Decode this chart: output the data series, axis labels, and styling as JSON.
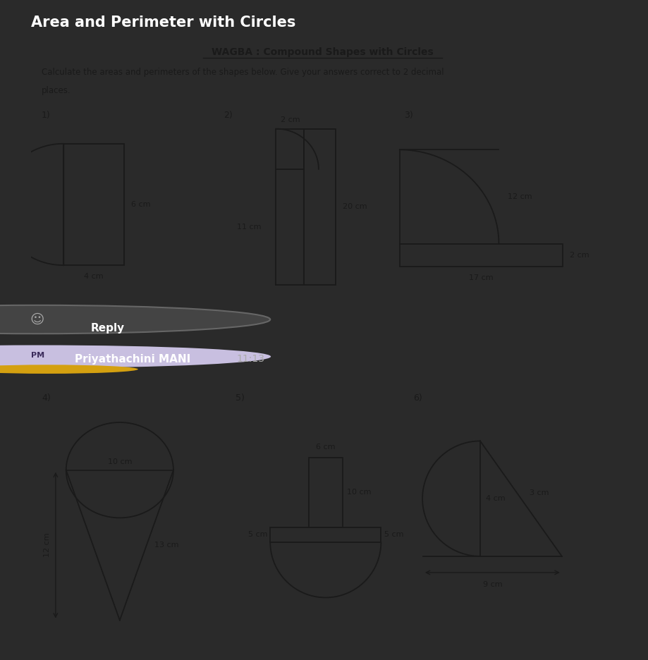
{
  "title": "Area and Perimeter with Circles",
  "bg_color": "#2a2a2a",
  "card_color": "#e8e8e8",
  "sc": "#1a1a1a",
  "wagba_title": "WAGBA : Compound Shapes with Circles",
  "instruction_line1": "Calculate the areas and perimeters of the shapes below. Give your answers correct to 2 decimal",
  "instruction_line2": "places.",
  "reply_text": "Reply",
  "pm_name": "Priyathachini MANI",
  "pm_time": "11:13",
  "labels_top": [
    "1)",
    "2)",
    "3)"
  ],
  "labels_bot": [
    "4)",
    "5)",
    "6)"
  ],
  "dims1": {
    "height": "6 cm",
    "base": "4 cm"
  },
  "dims2": {
    "top": "2 cm",
    "left": "11 cm",
    "right": "20 cm"
  },
  "dims3": {
    "side": "12 cm",
    "base": "17 cm",
    "height": "2 cm"
  },
  "dims4": {
    "diam": "10 cm",
    "left": "12 cm",
    "right": "13 cm"
  },
  "dims5": {
    "top": "6 cm",
    "right": "10 cm",
    "left_b": "5 cm",
    "right_b": "5 cm"
  },
  "dims6": {
    "vert": "4 cm",
    "slant": "3 cm",
    "base": "9 cm"
  }
}
